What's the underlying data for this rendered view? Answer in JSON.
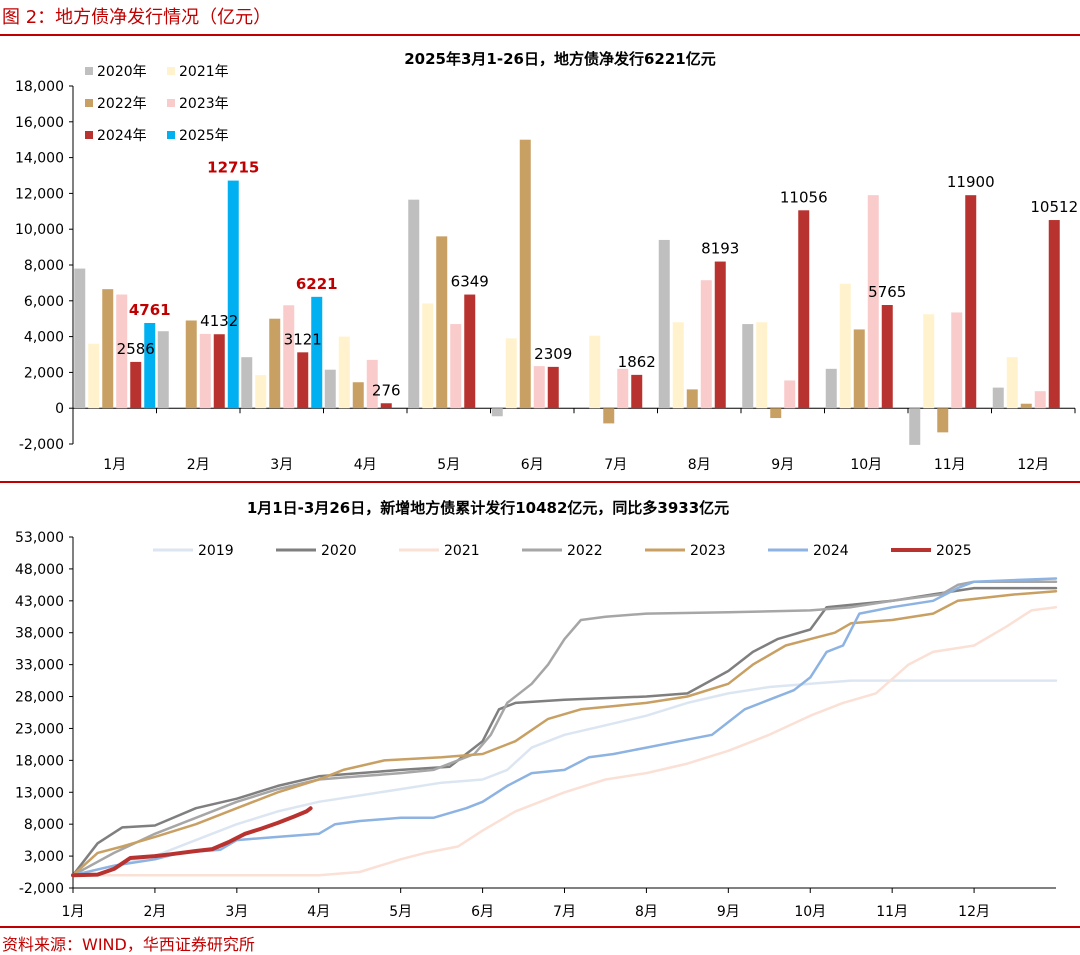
{
  "figure_title": "图 2：地方债净发行情况（亿元）",
  "source_note": "资料来源：WIND，华西证券研究所",
  "colors": {
    "rule": "#c00000",
    "series1": {
      "2020年": "#bfbfbf",
      "2021年": "#fff2cc",
      "2022年": "#c9a063",
      "2023年": "#f9cbcb",
      "2024年": "#b8332f",
      "2025年": "#00b0f0"
    },
    "series2": {
      "2019": "#dce6f2",
      "2020": "#7f7f7f",
      "2021": "#fbe0d6",
      "2022": "#a6a6a6",
      "2023": "#c9a063",
      "2024": "#8db3e2",
      "2025": "#b8332f"
    }
  },
  "chart_data": [
    {
      "type": "bar",
      "title": "2025年3月1-26日，地方债净发行6221亿元",
      "categories": [
        "1月",
        "2月",
        "3月",
        "4月",
        "5月",
        "6月",
        "7月",
        "8月",
        "9月",
        "10月",
        "11月",
        "12月"
      ],
      "ylim": [
        -2000,
        18000
      ],
      "yticks": [
        "18,000",
        "16,000",
        "14,000",
        "12,000",
        "10,000",
        "8,000",
        "6,000",
        "4,000",
        "2,000",
        "0",
        "-2,000"
      ],
      "legend_position": "top-left",
      "series": [
        {
          "name": "2020年",
          "values": [
            7800,
            4300,
            2850,
            2150,
            11650,
            -450,
            null,
            9400,
            4700,
            2200,
            -2050,
            1150
          ]
        },
        {
          "name": "2021年",
          "values": [
            3600,
            null,
            1850,
            4000,
            5850,
            3900,
            4050,
            4800,
            4800,
            6950,
            5250,
            2850
          ]
        },
        {
          "name": "2022年",
          "values": [
            6650,
            4900,
            5000,
            1450,
            9600,
            15000,
            -850,
            1050,
            -550,
            4400,
            -1350,
            250
          ]
        },
        {
          "name": "2023年",
          "values": [
            6350,
            4150,
            5750,
            2700,
            4700,
            2350,
            2200,
            7150,
            1550,
            11900,
            5350,
            950
          ]
        },
        {
          "name": "2024年",
          "values": [
            2586,
            4132,
            3121,
            276,
            6349,
            2309,
            1862,
            8193,
            11056,
            5765,
            11900,
            10512
          ]
        },
        {
          "name": "2025年",
          "values": [
            4761,
            12715,
            6221,
            null,
            null,
            null,
            null,
            null,
            null,
            null,
            null,
            null
          ]
        }
      ],
      "data_labels": [
        {
          "series": "2024年",
          "index": 0,
          "text": "2586",
          "highlight": false
        },
        {
          "series": "2024年",
          "index": 1,
          "text": "4132",
          "highlight": false
        },
        {
          "series": "2024年",
          "index": 2,
          "text": "3121",
          "highlight": false
        },
        {
          "series": "2024年",
          "index": 3,
          "text": "276",
          "highlight": false
        },
        {
          "series": "2024年",
          "index": 4,
          "text": "6349",
          "highlight": false
        },
        {
          "series": "2024年",
          "index": 5,
          "text": "2309",
          "highlight": false
        },
        {
          "series": "2024年",
          "index": 6,
          "text": "1862",
          "highlight": false
        },
        {
          "series": "2024年",
          "index": 7,
          "text": "8193",
          "highlight": false
        },
        {
          "series": "2024年",
          "index": 8,
          "text": "11056",
          "highlight": false
        },
        {
          "series": "2024年",
          "index": 9,
          "text": "5765",
          "highlight": false
        },
        {
          "series": "2024年",
          "index": 10,
          "text": "11900",
          "highlight": false
        },
        {
          "series": "2024年",
          "index": 11,
          "text": "10512",
          "highlight": false
        },
        {
          "series": "2025年",
          "index": 0,
          "text": "4761",
          "highlight": true
        },
        {
          "series": "2025年",
          "index": 1,
          "text": "12715",
          "highlight": true
        },
        {
          "series": "2025年",
          "index": 2,
          "text": "6221",
          "highlight": true
        }
      ]
    },
    {
      "type": "line",
      "title": "1月1日-3月26日，新增地方债累计发行10482亿元，同比多3933亿元",
      "xlabel_ticks": [
        "1月",
        "2月",
        "3月",
        "4月",
        "5月",
        "6月",
        "7月",
        "8月",
        "9月",
        "10月",
        "11月",
        "12月"
      ],
      "x_range_months": [
        0,
        12
      ],
      "ylim": [
        -2000,
        53000
      ],
      "yticks": [
        "53,000",
        "48,000",
        "43,000",
        "38,000",
        "33,000",
        "28,000",
        "23,000",
        "18,000",
        "13,000",
        "8,000",
        "3,000",
        "-2,000"
      ],
      "legend_position": "top",
      "series": [
        {
          "name": "2019",
          "points": [
            [
              0,
              0
            ],
            [
              0.5,
              1500
            ],
            [
              1,
              3000
            ],
            [
              1.5,
              5500
            ],
            [
              2,
              8000
            ],
            [
              2.5,
              10000
            ],
            [
              3,
              11500
            ],
            [
              3.5,
              12500
            ],
            [
              4,
              13500
            ],
            [
              4.5,
              14500
            ],
            [
              5,
              15000
            ],
            [
              5.3,
              16500
            ],
            [
              5.6,
              20000
            ],
            [
              6,
              22000
            ],
            [
              6.5,
              23500
            ],
            [
              7,
              25000
            ],
            [
              7.5,
              27000
            ],
            [
              8,
              28500
            ],
            [
              8.5,
              29500
            ],
            [
              9,
              30000
            ],
            [
              9.5,
              30500
            ],
            [
              10,
              30500
            ],
            [
              11,
              30500
            ],
            [
              12,
              30500
            ]
          ]
        },
        {
          "name": "2020",
          "points": [
            [
              0,
              0
            ],
            [
              0.3,
              5000
            ],
            [
              0.6,
              7500
            ],
            [
              1,
              7800
            ],
            [
              1.5,
              10500
            ],
            [
              2,
              12000
            ],
            [
              2.5,
              14000
            ],
            [
              3,
              15500
            ],
            [
              3.5,
              16000
            ],
            [
              4,
              16500
            ],
            [
              4.6,
              17000
            ],
            [
              4.9,
              20000
            ],
            [
              5,
              21000
            ],
            [
              5.2,
              26000
            ],
            [
              5.4,
              27000
            ],
            [
              6,
              27500
            ],
            [
              7,
              28000
            ],
            [
              7.5,
              28500
            ],
            [
              8,
              32000
            ],
            [
              8.3,
              35000
            ],
            [
              8.6,
              37000
            ],
            [
              9,
              38500
            ],
            [
              9.2,
              42000
            ],
            [
              9.6,
              42500
            ],
            [
              10,
              43000
            ],
            [
              10.5,
              44000
            ],
            [
              11,
              45000
            ],
            [
              12,
              45000
            ]
          ]
        },
        {
          "name": "2021",
          "points": [
            [
              0,
              0
            ],
            [
              3,
              0
            ],
            [
              3.5,
              500
            ],
            [
              4,
              2500
            ],
            [
              4.3,
              3500
            ],
            [
              4.7,
              4500
            ],
            [
              5,
              7000
            ],
            [
              5.4,
              10000
            ],
            [
              6,
              13000
            ],
            [
              6.5,
              15000
            ],
            [
              7,
              16000
            ],
            [
              7.5,
              17500
            ],
            [
              8,
              19500
            ],
            [
              8.5,
              22000
            ],
            [
              9,
              25000
            ],
            [
              9.4,
              27000
            ],
            [
              9.8,
              28500
            ],
            [
              10.2,
              33000
            ],
            [
              10.5,
              35000
            ],
            [
              11,
              36000
            ],
            [
              11.4,
              39000
            ],
            [
              11.7,
              41500
            ],
            [
              12,
              42000
            ]
          ]
        },
        {
          "name": "2022",
          "points": [
            [
              0,
              0
            ],
            [
              0.5,
              3500
            ],
            [
              1,
              6500
            ],
            [
              1.5,
              9000
            ],
            [
              2,
              11500
            ],
            [
              2.5,
              13500
            ],
            [
              3,
              15000
            ],
            [
              3.5,
              15500
            ],
            [
              4,
              16000
            ],
            [
              4.4,
              16500
            ],
            [
              4.9,
              19000
            ],
            [
              5.1,
              22000
            ],
            [
              5.3,
              27000
            ],
            [
              5.6,
              30000
            ],
            [
              5.8,
              33000
            ],
            [
              6,
              37000
            ],
            [
              6.2,
              40000
            ],
            [
              6.5,
              40500
            ],
            [
              7,
              41000
            ],
            [
              8,
              41200
            ],
            [
              9,
              41500
            ],
            [
              9.5,
              42000
            ],
            [
              10,
              43000
            ],
            [
              10.6,
              44000
            ],
            [
              10.8,
              45500
            ],
            [
              11,
              46000
            ],
            [
              12,
              46000
            ]
          ]
        },
        {
          "name": "2023",
          "points": [
            [
              0,
              0
            ],
            [
              0.3,
              3500
            ],
            [
              0.6,
              4500
            ],
            [
              1,
              6000
            ],
            [
              1.5,
              8000
            ],
            [
              2,
              10500
            ],
            [
              2.5,
              13000
            ],
            [
              3,
              15000
            ],
            [
              3.3,
              16500
            ],
            [
              3.8,
              18000
            ],
            [
              4.5,
              18500
            ],
            [
              5,
              19000
            ],
            [
              5.4,
              21000
            ],
            [
              5.8,
              24500
            ],
            [
              6.2,
              26000
            ],
            [
              6.6,
              26500
            ],
            [
              7,
              27000
            ],
            [
              7.5,
              28000
            ],
            [
              8,
              30000
            ],
            [
              8.3,
              33000
            ],
            [
              8.7,
              36000
            ],
            [
              9,
              37000
            ],
            [
              9.3,
              38000
            ],
            [
              9.5,
              39500
            ],
            [
              10,
              40000
            ],
            [
              10.5,
              41000
            ],
            [
              10.8,
              43000
            ],
            [
              11.5,
              44000
            ],
            [
              12,
              44500
            ]
          ]
        },
        {
          "name": "2024",
          "points": [
            [
              0,
              0
            ],
            [
              0.5,
              1500
            ],
            [
              1,
              2500
            ],
            [
              1.3,
              3500
            ],
            [
              1.8,
              4000
            ],
            [
              2,
              5500
            ],
            [
              2.5,
              6000
            ],
            [
              3,
              6500
            ],
            [
              3.2,
              8000
            ],
            [
              3.5,
              8500
            ],
            [
              4,
              9000
            ],
            [
              4.4,
              9000
            ],
            [
              4.8,
              10500
            ],
            [
              5,
              11500
            ],
            [
              5.3,
              14000
            ],
            [
              5.6,
              16000
            ],
            [
              6,
              16500
            ],
            [
              6.3,
              18500
            ],
            [
              6.6,
              19000
            ],
            [
              7,
              20000
            ],
            [
              7.4,
              21000
            ],
            [
              7.8,
              22000
            ],
            [
              8,
              24000
            ],
            [
              8.2,
              26000
            ],
            [
              8.5,
              27500
            ],
            [
              8.8,
              29000
            ],
            [
              9,
              31000
            ],
            [
              9.2,
              35000
            ],
            [
              9.4,
              36000
            ],
            [
              9.6,
              41000
            ],
            [
              10,
              42000
            ],
            [
              10.5,
              43000
            ],
            [
              10.8,
              45000
            ],
            [
              11,
              46000
            ],
            [
              12,
              46500
            ]
          ]
        },
        {
          "name": "2025",
          "points": [
            [
              0,
              0
            ],
            [
              0.3,
              100
            ],
            [
              0.5,
              1000
            ],
            [
              0.7,
              2700
            ],
            [
              1,
              3000
            ],
            [
              1.2,
              3300
            ],
            [
              1.5,
              3800
            ],
            [
              1.7,
              4100
            ],
            [
              1.9,
              5200
            ],
            [
              2.1,
              6500
            ],
            [
              2.3,
              7300
            ],
            [
              2.5,
              8200
            ],
            [
              2.7,
              9200
            ],
            [
              2.85,
              10000
            ],
            [
              2.9,
              10482
            ]
          ]
        }
      ]
    }
  ]
}
